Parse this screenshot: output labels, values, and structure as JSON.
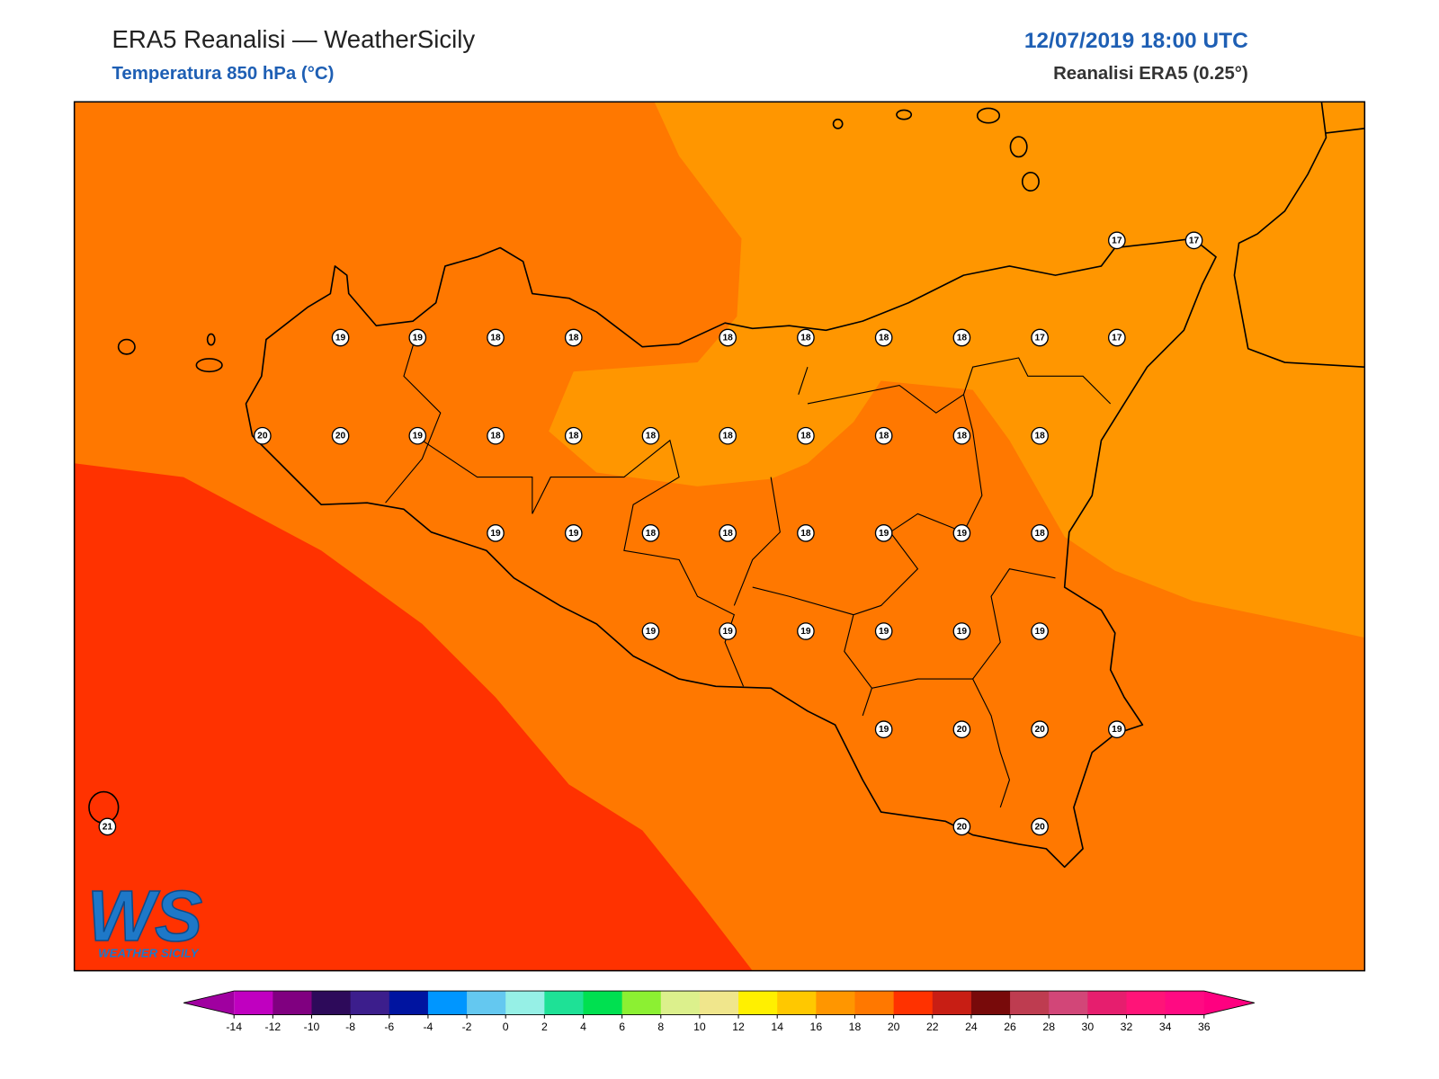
{
  "header": {
    "title": "ERA5 Reanalisi — WeatherSicily",
    "subtitle": "Temperatura 850 hPa (°C)",
    "datetime": "12/07/2019 18:00 UTC",
    "source": "Reanalisi ERA5 (0.25°)"
  },
  "stations": [
    17,
    17,
    19,
    19,
    18,
    18,
    18,
    18,
    18,
    18,
    17,
    17,
    20,
    20,
    19,
    18,
    18,
    18,
    18,
    18,
    18,
    18,
    18,
    19,
    19,
    18,
    18,
    18,
    19,
    19,
    18,
    19,
    19,
    19,
    19,
    19,
    19,
    19,
    20,
    20,
    19,
    20,
    20,
    21
  ],
  "colorbar": {
    "ticks": [
      -14,
      -12,
      -10,
      -8,
      -6,
      -4,
      -2,
      0,
      2,
      4,
      6,
      8,
      10,
      12,
      14,
      16,
      18,
      20,
      22,
      24,
      26,
      28,
      30,
      32,
      34,
      36
    ],
    "colors": [
      "#c000c0",
      "#800080",
      "#2d0a5a",
      "#3c1e8c",
      "#0014a0",
      "#0096ff",
      "#64c8f0",
      "#96f0e6",
      "#1ee196",
      "#00e050",
      "#8cf032",
      "#dcf08c",
      "#f0e68c",
      "#fff000",
      "#ffc800",
      "#ff9600",
      "#ff7800",
      "#ff3200",
      "#c81e14",
      "#780a0a",
      "#be3c50",
      "#d24678",
      "#e61e6e",
      "#ff1478",
      "#ff0a82"
    ],
    "extend_colors": [
      "#a000a0",
      "#ff0080"
    ]
  },
  "logo": {
    "text": "WS",
    "subtitle": "WEATHER SICILY"
  }
}
